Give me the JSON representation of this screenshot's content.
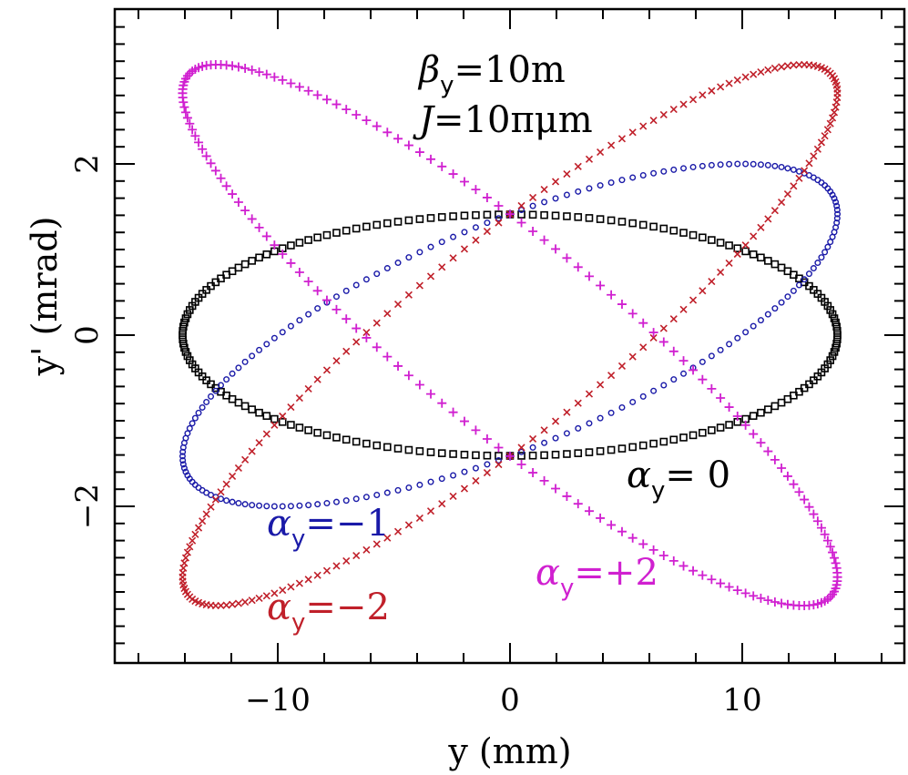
{
  "chart_data": {
    "type": "scatter",
    "title": "",
    "xlabel": "y (mm)",
    "ylabel": "y' (mrad)",
    "xlim": [
      -17,
      17
    ],
    "ylim": [
      -3.8,
      3.8
    ],
    "x_ticks": [
      -10,
      0,
      10
    ],
    "x_tick_labels": [
      "−10",
      "0",
      "10"
    ],
    "y_ticks": [
      -2,
      0,
      2
    ],
    "y_tick_labels": [
      "−2",
      "0",
      "2"
    ],
    "grid": false,
    "legend": "none",
    "parameters": {
      "beta_y_label": "β",
      "beta_y_value": "=10m",
      "J_label": "J",
      "J_value": "=10πμm",
      "beta_y_m": 10,
      "J_pi_um": 10
    },
    "series": [
      {
        "key": "a0",
        "label_sym": "α",
        "label_value": "=  0",
        "alpha": 0,
        "marker": "square",
        "color": "#000000",
        "y_max_mm": 14.1,
        "yp_max_mrad": 1.41
      },
      {
        "key": "am1",
        "label_sym": "α",
        "label_value": "=−1",
        "alpha": -1,
        "marker": "circle",
        "color": "#1a1aa8",
        "y_max_mm": 14.1,
        "yp_max_mrad": 2.0
      },
      {
        "key": "am2",
        "label_sym": "α",
        "label_value": "=−2",
        "alpha": -2,
        "marker": "cross",
        "color": "#c0202a",
        "y_max_mm": 14.1,
        "yp_max_mrad": 3.16
      },
      {
        "key": "ap2",
        "label_sym": "α",
        "label_value": "=+2",
        "alpha": 2,
        "marker": "plus",
        "color": "#d020d0",
        "y_max_mm": 14.1,
        "yp_max_mrad": 3.16
      }
    ],
    "subscript": "y"
  }
}
